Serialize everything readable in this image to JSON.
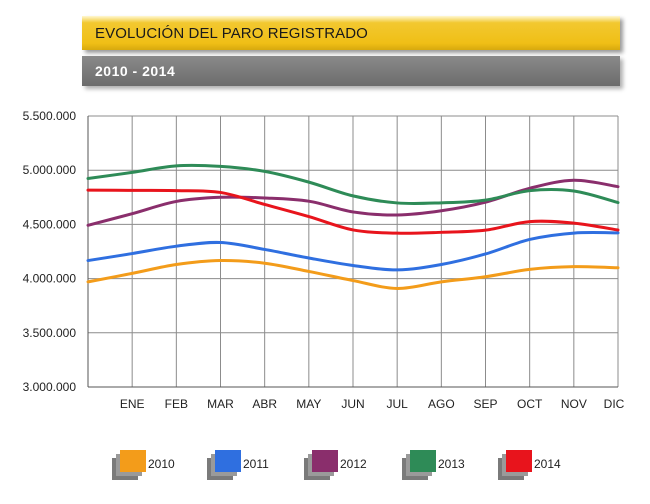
{
  "header": {
    "title": "EVOLUCIÓN DEL PARO REGISTRADO",
    "subtitle": "2010 - 2014"
  },
  "chart_data": {
    "type": "line",
    "categories": [
      "ENE",
      "FEB",
      "MAR",
      "ABR",
      "MAY",
      "JUN",
      "JUL",
      "AGO",
      "SEP",
      "OCT",
      "NOV",
      "DIC"
    ],
    "ylim": [
      3000000,
      5500000
    ],
    "yticks": [
      3000000,
      3500000,
      4000000,
      4500000,
      5000000,
      5500000
    ],
    "ytick_labels": [
      "3.000.000",
      "3.500.000",
      "4.000.000",
      "4.500.000",
      "5.000.000",
      "5.500.000"
    ],
    "grid": true,
    "legend_position": "bottom",
    "series": [
      {
        "name": "2010",
        "color": "#f39c1a",
        "values": [
          4048000,
          4130000,
          4167000,
          4142000,
          4066000,
          3982000,
          3909000,
          3970000,
          4017000,
          4085000,
          4110000,
          4100000
        ]
      },
      {
        "name": "2011",
        "color": "#2f6fe0",
        "values": [
          4231000,
          4299000,
          4333000,
          4269000,
          4190000,
          4121000,
          4080000,
          4130000,
          4227000,
          4361000,
          4420000,
          4422000
        ]
      },
      {
        "name": "2012",
        "color": "#8a2e6c",
        "values": [
          4599000,
          4712000,
          4750000,
          4744000,
          4714000,
          4615000,
          4587000,
          4626000,
          4705000,
          4833000,
          4907000,
          4848000
        ]
      },
      {
        "name": "2013",
        "color": "#2e8b57",
        "values": [
          4980000,
          5040000,
          5035000,
          4989000,
          4890000,
          4763000,
          4698000,
          4699000,
          4724000,
          4811000,
          4808000,
          4701000
        ]
      },
      {
        "name": "2014",
        "color": "#e8141c",
        "values": [
          4814000,
          4812000,
          4795000,
          4684000,
          4572000,
          4449000,
          4419000,
          4427000,
          4447000,
          4526000,
          4512000,
          4448000
        ]
      }
    ]
  }
}
